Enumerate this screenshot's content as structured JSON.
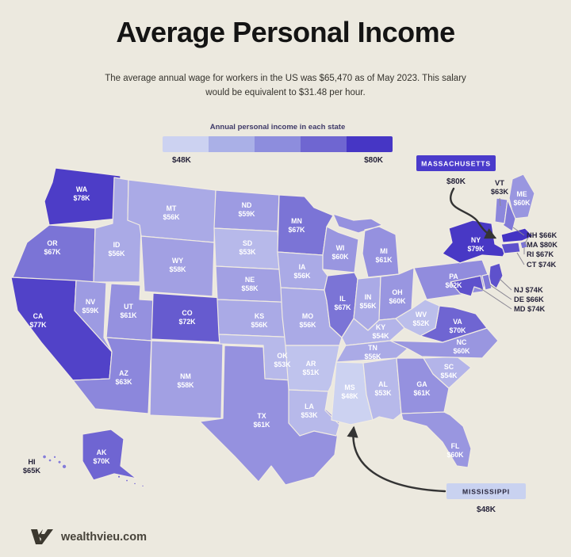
{
  "header": {
    "title": "Average Personal Income",
    "subtitle": "The average annual wage for workers in the US was $65,470 as of May 2023. This salary would be equivalent to $31.48 per hour."
  },
  "legend": {
    "title": "Annual personal income in each state",
    "min_label": "$48K",
    "max_label": "$80K"
  },
  "callouts": {
    "massachusetts": {
      "label": "MASSACHUSETTS",
      "value_label": "$80K"
    },
    "mississippi": {
      "label": "MISSISSIPPI",
      "value_label": "$48K"
    }
  },
  "footer": {
    "brand": "wealthvieu.com"
  },
  "colors": {
    "background": "#ece9df",
    "scale_low": "#ccd2f1",
    "scale_high": "#4433c4",
    "scale": [
      "#ccd2f1",
      "#aab0e7",
      "#8d8ddd",
      "#6f66d1",
      "#4636c5"
    ],
    "badge_dark_bg": "#4a3bcb",
    "badge_light_bg": "#c9d2f0",
    "dark_text": "#26233a",
    "arrow": "#343434"
  },
  "chart_data": {
    "type": "heatmap",
    "map_type": "us-state-choropleth",
    "title": "Average Personal Income",
    "legend_title": "Annual personal income in each state",
    "unit": "USD per year (thousands)",
    "scale": {
      "min": 48,
      "max": 80,
      "min_label": "$48K",
      "max_label": "$80K"
    },
    "states": [
      {
        "abbr": "WA",
        "value": 78,
        "label": "$78K"
      },
      {
        "abbr": "OR",
        "value": 67,
        "label": "$67K"
      },
      {
        "abbr": "CA",
        "value": 77,
        "label": "$77K"
      },
      {
        "abbr": "ID",
        "value": 56,
        "label": "$56K"
      },
      {
        "abbr": "NV",
        "value": 59,
        "label": "$59K"
      },
      {
        "abbr": "UT",
        "value": 61,
        "label": "$61K"
      },
      {
        "abbr": "AZ",
        "value": 63,
        "label": "$63K"
      },
      {
        "abbr": "MT",
        "value": 56,
        "label": "$56K"
      },
      {
        "abbr": "WY",
        "value": 58,
        "label": "$58K"
      },
      {
        "abbr": "CO",
        "value": 72,
        "label": "$72K"
      },
      {
        "abbr": "NM",
        "value": 58,
        "label": "$58K"
      },
      {
        "abbr": "ND",
        "value": 59,
        "label": "$59K"
      },
      {
        "abbr": "SD",
        "value": 53,
        "label": "$53K"
      },
      {
        "abbr": "NE",
        "value": 58,
        "label": "$58K"
      },
      {
        "abbr": "KS",
        "value": 56,
        "label": "$56K"
      },
      {
        "abbr": "OK",
        "value": 53,
        "label": "$53K"
      },
      {
        "abbr": "TX",
        "value": 61,
        "label": "$61K"
      },
      {
        "abbr": "MN",
        "value": 67,
        "label": "$67K"
      },
      {
        "abbr": "IA",
        "value": 56,
        "label": "$56K"
      },
      {
        "abbr": "MO",
        "value": 56,
        "label": "$56K"
      },
      {
        "abbr": "AR",
        "value": 51,
        "label": "$51K"
      },
      {
        "abbr": "LA",
        "value": 53,
        "label": "$53K"
      },
      {
        "abbr": "WI",
        "value": 60,
        "label": "$60K"
      },
      {
        "abbr": "IL",
        "value": 67,
        "label": "$67K"
      },
      {
        "abbr": "IN",
        "value": 56,
        "label": "$56K"
      },
      {
        "abbr": "MI",
        "value": 61,
        "label": "$61K"
      },
      {
        "abbr": "OH",
        "value": 60,
        "label": "$60K"
      },
      {
        "abbr": "KY",
        "value": 54,
        "label": "$54K"
      },
      {
        "abbr": "TN",
        "value": 56,
        "label": "$56K"
      },
      {
        "abbr": "MS",
        "value": 48,
        "label": "$48K"
      },
      {
        "abbr": "AL",
        "value": 53,
        "label": "$53K"
      },
      {
        "abbr": "GA",
        "value": 61,
        "label": "$61K"
      },
      {
        "abbr": "SC",
        "value": 54,
        "label": "$54K"
      },
      {
        "abbr": "NC",
        "value": 60,
        "label": "$60K"
      },
      {
        "abbr": "VA",
        "value": 70,
        "label": "$70K"
      },
      {
        "abbr": "WV",
        "value": 52,
        "label": "$52K"
      },
      {
        "abbr": "PA",
        "value": 62,
        "label": "$62K"
      },
      {
        "abbr": "NY",
        "value": 79,
        "label": "$79K"
      },
      {
        "abbr": "ME",
        "value": 60,
        "label": "$60K"
      },
      {
        "abbr": "VT",
        "value": 63,
        "label": "$63K"
      },
      {
        "abbr": "NH",
        "value": 66,
        "label": "$66K"
      },
      {
        "abbr": "MA",
        "value": 80,
        "label": "$80K"
      },
      {
        "abbr": "RI",
        "value": 67,
        "label": "$67K"
      },
      {
        "abbr": "CT",
        "value": 74,
        "label": "$74K"
      },
      {
        "abbr": "NJ",
        "value": 74,
        "label": "$74K"
      },
      {
        "abbr": "DE",
        "value": 66,
        "label": "$66K"
      },
      {
        "abbr": "MD",
        "value": 74,
        "label": "$74K"
      },
      {
        "abbr": "FL",
        "value": 60,
        "label": "$60K"
      },
      {
        "abbr": "AK",
        "value": 70,
        "label": "$70K"
      },
      {
        "abbr": "HI",
        "value": 65,
        "label": "$65K"
      }
    ]
  }
}
